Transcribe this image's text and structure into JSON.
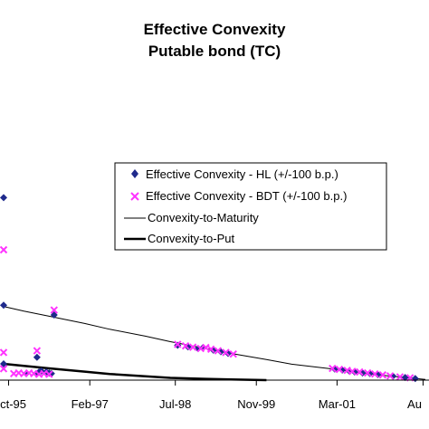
{
  "chart_data": {
    "type": "scatter",
    "title": "Effective Convexity",
    "subtitle": "Putable bond (TC)",
    "xlabel": "",
    "ylabel": "",
    "x_ticks": [
      "Oct-95",
      "Feb-97",
      "Jul-98",
      "Nov-99",
      "Mar-01",
      "Au"
    ],
    "xlim": [
      "1995-09-01",
      "2002-08-15"
    ],
    "ylim": [
      0,
      1
    ],
    "grid": false,
    "legend_position": "center-right",
    "legend": [
      "Effective Convexity - HL (+/-100 b.p.)",
      "Effective Convexity - BDT (+/-100 b.p.)",
      "Convexity-to-Maturity",
      "Convexity-to-Put"
    ],
    "series": [
      {
        "name": "Effective Convexity - HL (+/-100 b.p.)",
        "marker": "diamond",
        "color": "#1f2a8c",
        "points": [
          {
            "x": "1995-09-01",
            "y": 0.56
          },
          {
            "x": "1995-09-01",
            "y": 0.23
          },
          {
            "x": "1995-09-01",
            "y": 0.05
          },
          {
            "x": "1996-01-15",
            "y": 0.02
          },
          {
            "x": "1996-03-15",
            "y": 0.02
          },
          {
            "x": "1996-04-01",
            "y": 0.025
          },
          {
            "x": "1996-04-15",
            "y": 0.028
          },
          {
            "x": "1996-05-15",
            "y": 0.025
          },
          {
            "x": "1996-06-01",
            "y": 0.022
          },
          {
            "x": "1996-06-15",
            "y": 0.02
          },
          {
            "x": "1996-03-20",
            "y": 0.07
          },
          {
            "x": "1996-07-01",
            "y": 0.2
          },
          {
            "x": "1998-07-15",
            "y": 0.107
          },
          {
            "x": "1998-09-15",
            "y": 0.102
          },
          {
            "x": "1998-11-15",
            "y": 0.097
          },
          {
            "x": "1998-12-15",
            "y": 0.1
          },
          {
            "x": "1999-02-15",
            "y": 0.092
          },
          {
            "x": "1999-04-01",
            "y": 0.087
          },
          {
            "x": "1999-05-15",
            "y": 0.082
          },
          {
            "x": "2001-02-15",
            "y": 0.034
          },
          {
            "x": "2001-04-01",
            "y": 0.031
          },
          {
            "x": "2001-05-15",
            "y": 0.027
          },
          {
            "x": "2001-06-15",
            "y": 0.025
          },
          {
            "x": "2001-08-01",
            "y": 0.022
          },
          {
            "x": "2001-09-15",
            "y": 0.02
          },
          {
            "x": "2001-11-01",
            "y": 0.017
          },
          {
            "x": "2002-02-01",
            "y": 0.012
          },
          {
            "x": "2002-04-15",
            "y": 0.008
          },
          {
            "x": "2002-06-15",
            "y": 0.005
          }
        ]
      },
      {
        "name": "Effective Convexity - BDT (+/-100 b.p.)",
        "marker": "x",
        "color": "#ff33ff",
        "points": [
          {
            "x": "1995-09-01",
            "y": 0.4
          },
          {
            "x": "1995-09-01",
            "y": 0.085
          },
          {
            "x": "1995-09-01",
            "y": 0.035
          },
          {
            "x": "1995-11-01",
            "y": 0.02
          },
          {
            "x": "1995-12-01",
            "y": 0.022
          },
          {
            "x": "1996-01-01",
            "y": 0.02
          },
          {
            "x": "1996-02-01",
            "y": 0.022
          },
          {
            "x": "1996-03-01",
            "y": 0.02
          },
          {
            "x": "1996-03-20",
            "y": 0.09
          },
          {
            "x": "1996-04-01",
            "y": 0.018
          },
          {
            "x": "1996-05-01",
            "y": 0.02
          },
          {
            "x": "1996-06-01",
            "y": 0.018
          },
          {
            "x": "1996-07-01",
            "y": 0.215
          },
          {
            "x": "1998-07-15",
            "y": 0.11
          },
          {
            "x": "1998-09-01",
            "y": 0.105
          },
          {
            "x": "1998-10-15",
            "y": 0.101
          },
          {
            "x": "1998-12-01",
            "y": 0.097
          },
          {
            "x": "1999-01-01",
            "y": 0.1
          },
          {
            "x": "1999-02-01",
            "y": 0.095
          },
          {
            "x": "1999-03-15",
            "y": 0.09
          },
          {
            "x": "1999-05-01",
            "y": 0.085
          },
          {
            "x": "1999-06-15",
            "y": 0.08
          },
          {
            "x": "2001-02-01",
            "y": 0.036
          },
          {
            "x": "2001-03-15",
            "y": 0.033
          },
          {
            "x": "2001-05-01",
            "y": 0.03
          },
          {
            "x": "2001-06-01",
            "y": 0.027
          },
          {
            "x": "2001-07-15",
            "y": 0.025
          },
          {
            "x": "2001-09-01",
            "y": 0.022
          },
          {
            "x": "2001-10-15",
            "y": 0.019
          },
          {
            "x": "2001-12-01",
            "y": 0.016
          },
          {
            "x": "2002-01-15",
            "y": 0.013
          },
          {
            "x": "2002-03-15",
            "y": 0.01
          },
          {
            "x": "2002-05-15",
            "y": 0.007
          }
        ]
      },
      {
        "name": "Convexity-to-Maturity",
        "style": "line",
        "color": "#000000",
        "line_width": 1,
        "points": [
          {
            "x": "1995-09-01",
            "y": 0.226
          },
          {
            "x": "1996-01-01",
            "y": 0.212
          },
          {
            "x": "1996-06-01",
            "y": 0.196
          },
          {
            "x": "1997-01-01",
            "y": 0.174
          },
          {
            "x": "1997-06-01",
            "y": 0.156
          },
          {
            "x": "1998-01-01",
            "y": 0.135
          },
          {
            "x": "1998-06-01",
            "y": 0.118
          },
          {
            "x": "1999-01-01",
            "y": 0.097
          },
          {
            "x": "1999-06-01",
            "y": 0.082
          },
          {
            "x": "2000-01-01",
            "y": 0.063
          },
          {
            "x": "2000-06-01",
            "y": 0.049
          },
          {
            "x": "2001-01-01",
            "y": 0.036
          },
          {
            "x": "2001-06-01",
            "y": 0.026
          },
          {
            "x": "2002-01-01",
            "y": 0.013
          },
          {
            "x": "2002-08-15",
            "y": 0.002
          }
        ]
      },
      {
        "name": "Convexity-to-Put",
        "style": "line",
        "color": "#000000",
        "line_width": 2.5,
        "points": [
          {
            "x": "1995-09-01",
            "y": 0.05
          },
          {
            "x": "1996-01-01",
            "y": 0.044
          },
          {
            "x": "1996-06-01",
            "y": 0.036
          },
          {
            "x": "1997-01-01",
            "y": 0.026
          },
          {
            "x": "1997-06-01",
            "y": 0.019
          },
          {
            "x": "1998-01-01",
            "y": 0.012
          },
          {
            "x": "1998-06-01",
            "y": 0.007
          },
          {
            "x": "1999-01-01",
            "y": 0.004
          },
          {
            "x": "1999-06-01",
            "y": 0.002
          },
          {
            "x": "2000-01-01",
            "y": 0
          }
        ]
      }
    ]
  }
}
